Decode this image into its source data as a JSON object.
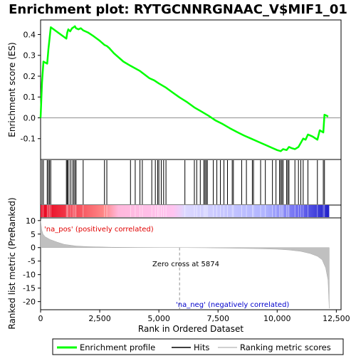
{
  "chart_data": {
    "type": "line",
    "title": "Enrichment plot: RYTGCNNRGNAAC_V$MIF1_01",
    "top_panel": {
      "ylabel": "Enrichment score (ES)",
      "ylim": [
        -0.2,
        0.47
      ],
      "yticks": [
        -0.1,
        0.0,
        0.1,
        0.2,
        0.3,
        0.4
      ],
      "ytick_labels": [
        "-0.1",
        "0.0",
        "0.1",
        "0.2",
        "0.3",
        "0.4"
      ],
      "series": [
        {
          "name": "Enrichment profile",
          "color": "#00ff00",
          "x": [
            0,
            60,
            120,
            280,
            330,
            380,
            430,
            1090,
            1130,
            1170,
            1250,
            1330,
            1400,
            1450,
            1500,
            1600,
            1700,
            1800,
            2000,
            2200,
            2500,
            2700,
            2800,
            2900,
            3100,
            3500,
            3800,
            4200,
            4600,
            4800,
            5000,
            5300,
            5600,
            5874,
            6200,
            6500,
            6800,
            7100,
            7400,
            7700,
            8000,
            8300,
            8600,
            8900,
            9200,
            9500,
            9800,
            10000,
            10150,
            10250,
            10400,
            10500,
            10600,
            10750,
            10900,
            11000,
            11100,
            11200,
            11300,
            11500,
            11700,
            11800,
            11950,
            12000,
            12100,
            12150
          ],
          "y": [
            0.0,
            0.17,
            0.27,
            0.26,
            0.33,
            0.38,
            0.435,
            0.38,
            0.41,
            0.425,
            0.415,
            0.43,
            0.435,
            0.44,
            0.43,
            0.425,
            0.43,
            0.42,
            0.41,
            0.395,
            0.37,
            0.35,
            0.345,
            0.335,
            0.31,
            0.27,
            0.25,
            0.225,
            0.19,
            0.18,
            0.165,
            0.145,
            0.12,
            0.098,
            0.075,
            0.05,
            0.03,
            0.01,
            -0.013,
            -0.03,
            -0.05,
            -0.068,
            -0.085,
            -0.1,
            -0.115,
            -0.13,
            -0.145,
            -0.155,
            -0.16,
            -0.15,
            -0.155,
            -0.14,
            -0.145,
            -0.15,
            -0.14,
            -0.12,
            -0.1,
            -0.105,
            -0.08,
            -0.09,
            -0.105,
            -0.06,
            -0.07,
            0.015,
            0.01,
            0.005
          ]
        }
      ]
    },
    "hits": [
      60,
      120,
      280,
      330,
      380,
      430,
      1090,
      1130,
      1170,
      1250,
      1330,
      1400,
      1450,
      1500,
      1800,
      2700,
      2800,
      3800,
      4000,
      4200,
      4300,
      4700,
      4850,
      4950,
      5000,
      5100,
      5200,
      5300,
      6100,
      6500,
      6600,
      6750,
      6900,
      6950,
      7000,
      7050,
      7300,
      7450,
      7600,
      7750,
      7900,
      8100,
      8150,
      8500,
      8700,
      8950,
      9000,
      9300,
      9500,
      9800,
      9950,
      10100,
      10150,
      10200,
      10250,
      10400,
      10450,
      10500,
      10750,
      10900,
      11000,
      11100,
      11300,
      11700,
      11950,
      12000
    ],
    "bottom_panel": {
      "ylabel": "Ranked list metric (PreRanked)",
      "ylim": [
        -23,
        11
      ],
      "yticks": [
        -20,
        -15,
        -10,
        -5,
        0,
        5,
        10
      ],
      "ytick_labels": [
        "-20",
        "-15",
        "-10",
        "-5",
        "0",
        "5",
        "10"
      ],
      "metric_x": [
        0,
        50,
        100,
        200,
        400,
        700,
        1000,
        1500,
        2000,
        3000,
        4000,
        5000,
        5874,
        7000,
        8000,
        9000,
        10000,
        10500,
        11000,
        11400,
        11700,
        11900,
        12050,
        12150,
        12200
      ],
      "metric_y": [
        10,
        6.5,
        5,
        4,
        3,
        2,
        1.2,
        0.6,
        0.35,
        0.15,
        0.07,
        0.02,
        0.0,
        -0.08,
        -0.2,
        -0.35,
        -0.6,
        -0.9,
        -1.4,
        -2.2,
        -3.2,
        -4.5,
        -7.5,
        -12,
        -22.5
      ],
      "annotations": {
        "pos_label": "'na_pos' (positively correlated)",
        "neg_label": "'na_neg' (negatively correlated)",
        "zero_cross": "Zero cross at 5874"
      }
    },
    "xlabel": "Rank in Ordered Dataset",
    "xlim": [
      0,
      12700
    ],
    "xticks": [
      0,
      2500,
      5000,
      7500,
      10000,
      12500
    ],
    "xtick_labels": [
      "0",
      "2,500",
      "5,000",
      "7,500",
      "10,000",
      "12,500"
    ],
    "zero_cross": 5874,
    "legend": {
      "placement": "bottom",
      "items": [
        {
          "label": "Enrichment profile",
          "color": "#00ff00"
        },
        {
          "label": "Hits",
          "color": "#000000"
        },
        {
          "label": "Ranking metric scores",
          "color": "#c0c0c0"
        }
      ]
    }
  }
}
